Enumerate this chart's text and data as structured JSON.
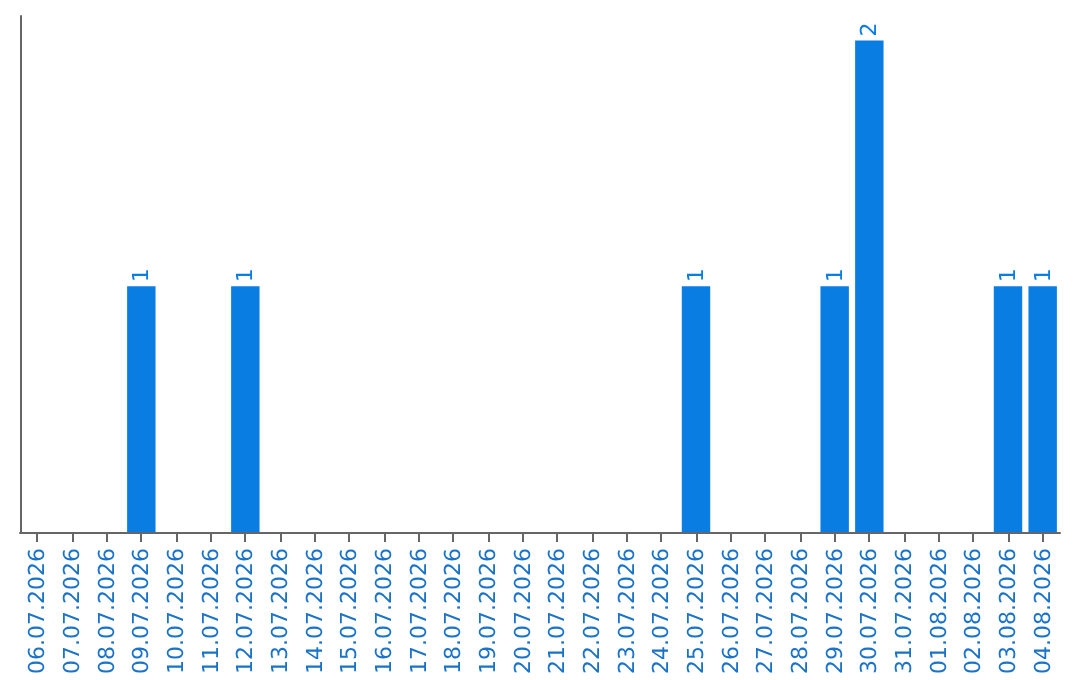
{
  "chart_data": {
    "type": "bar",
    "categories": [
      "06.07.2026",
      "07.07.2026",
      "08.07.2026",
      "09.07.2026",
      "10.07.2026",
      "11.07.2026",
      "12.07.2026",
      "13.07.2026",
      "14.07.2026",
      "15.07.2026",
      "16.07.2026",
      "17.07.2026",
      "18.07.2026",
      "19.07.2026",
      "20.07.2026",
      "21.07.2026",
      "22.07.2026",
      "23.07.2026",
      "24.07.2026",
      "25.07.2026",
      "26.07.2026",
      "27.07.2026",
      "28.07.2026",
      "29.07.2026",
      "30.07.2026",
      "31.07.2026",
      "01.08.2026",
      "02.08.2026",
      "03.08.2026",
      "04.08.2026"
    ],
    "values": [
      0,
      0,
      0,
      1,
      0,
      0,
      1,
      0,
      0,
      0,
      0,
      0,
      0,
      0,
      0,
      0,
      0,
      0,
      0,
      1,
      0,
      0,
      0,
      1,
      2,
      0,
      0,
      0,
      1,
      1
    ],
    "value_labels": [
      null,
      null,
      null,
      "1",
      null,
      null,
      "1",
      null,
      null,
      null,
      null,
      null,
      null,
      null,
      null,
      null,
      null,
      null,
      null,
      "1",
      null,
      null,
      null,
      "1",
      "2",
      null,
      null,
      null,
      "1",
      "1"
    ],
    "color": "#0a7de2",
    "tick_labels": "x"
  }
}
